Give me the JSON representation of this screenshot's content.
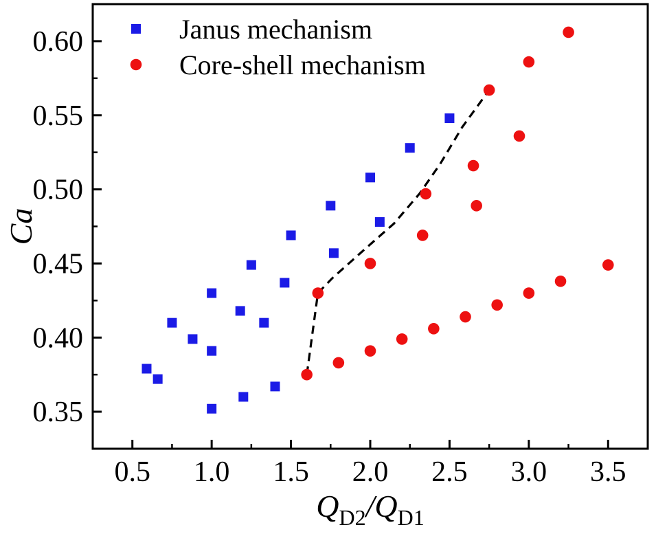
{
  "chart_data": {
    "type": "scatter",
    "title": "",
    "ylabel": "Ca",
    "xlabel_parts": [
      {
        "text": "Q",
        "style": "italic"
      },
      {
        "text": "D2",
        "style": "sub"
      },
      {
        "text": "/",
        "style": "italic"
      },
      {
        "text": "Q",
        "style": "italic"
      },
      {
        "text": "D1",
        "style": "sub"
      }
    ],
    "x_axis": {
      "min": 0.25,
      "max": 3.75,
      "major_ticks": [
        0.5,
        1.0,
        1.5,
        2.0,
        2.5,
        3.0,
        3.5
      ],
      "tick_labels": [
        "0.5",
        "1.0",
        "1.5",
        "2.0",
        "2.5",
        "3.0",
        "3.5"
      ],
      "minor_ticks": [
        0.75,
        1.25,
        1.75,
        2.25,
        2.75,
        3.25
      ]
    },
    "y_axis": {
      "min": 0.325,
      "max": 0.625,
      "major_ticks": [
        0.35,
        0.4,
        0.45,
        0.5,
        0.55,
        0.6
      ],
      "tick_labels": [
        "0.35",
        "0.40",
        "0.45",
        "0.50",
        "0.55",
        "0.60"
      ],
      "minor_ticks": [
        0.375,
        0.425,
        0.475,
        0.525,
        0.575
      ]
    },
    "grid": false,
    "legend_position": "top-left-inside",
    "series": [
      {
        "name": "Janus mechanism",
        "marker": "square",
        "color": "#1b1be6",
        "points": [
          [
            0.59,
            0.379
          ],
          [
            0.66,
            0.372
          ],
          [
            0.75,
            0.41
          ],
          [
            0.88,
            0.399
          ],
          [
            1.0,
            0.352
          ],
          [
            1.0,
            0.391
          ],
          [
            1.0,
            0.43
          ],
          [
            1.18,
            0.418
          ],
          [
            1.2,
            0.36
          ],
          [
            1.25,
            0.449
          ],
          [
            1.33,
            0.41
          ],
          [
            1.4,
            0.367
          ],
          [
            1.46,
            0.437
          ],
          [
            1.5,
            0.469
          ],
          [
            1.75,
            0.489
          ],
          [
            1.77,
            0.457
          ],
          [
            2.0,
            0.508
          ],
          [
            2.06,
            0.478
          ],
          [
            2.25,
            0.528
          ],
          [
            2.5,
            0.548
          ]
        ]
      },
      {
        "name": "Core-shell mechanism",
        "marker": "circle",
        "color": "#ed1111",
        "points": [
          [
            1.6,
            0.375
          ],
          [
            1.67,
            0.43
          ],
          [
            1.8,
            0.383
          ],
          [
            2.0,
            0.391
          ],
          [
            2.0,
            0.45
          ],
          [
            2.2,
            0.399
          ],
          [
            2.33,
            0.469
          ],
          [
            2.35,
            0.497
          ],
          [
            2.4,
            0.406
          ],
          [
            2.6,
            0.414
          ],
          [
            2.65,
            0.516
          ],
          [
            2.67,
            0.489
          ],
          [
            2.75,
            0.567
          ],
          [
            2.8,
            0.422
          ],
          [
            2.94,
            0.536
          ],
          [
            3.0,
            0.43
          ],
          [
            3.0,
            0.586
          ],
          [
            3.2,
            0.438
          ],
          [
            3.25,
            0.606
          ],
          [
            3.5,
            0.449
          ]
        ]
      }
    ],
    "boundary_line": {
      "style": "dashed",
      "color": "#000000",
      "points": [
        [
          1.6,
          0.375
        ],
        [
          1.67,
          0.43
        ],
        [
          1.76,
          0.44
        ],
        [
          1.98,
          0.461
        ],
        [
          2.15,
          0.477
        ],
        [
          2.31,
          0.497
        ],
        [
          2.44,
          0.517
        ],
        [
          2.58,
          0.542
        ],
        [
          2.75,
          0.567
        ]
      ]
    }
  }
}
